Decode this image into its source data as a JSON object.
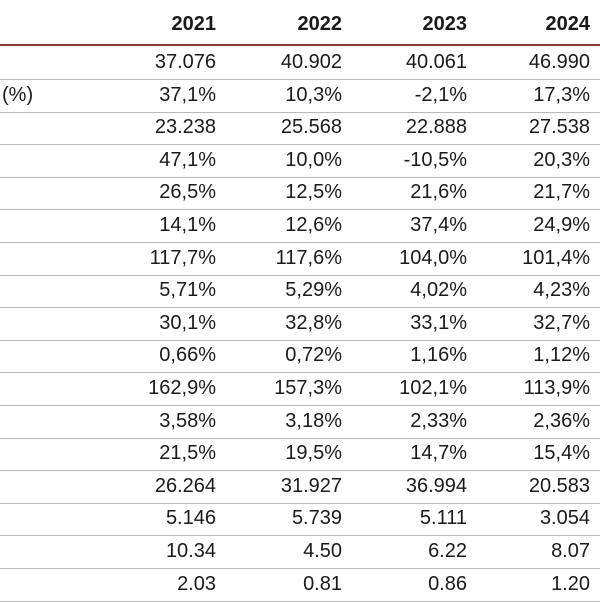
{
  "header": {
    "years": [
      "2021",
      "2022",
      "2023",
      "2024"
    ]
  },
  "rows": [
    {
      "label": "",
      "values": [
        "37.076",
        "40.902",
        "40.061",
        "46.990"
      ]
    },
    {
      "label": "(%)",
      "values": [
        "37,1%",
        "10,3%",
        "-2,1%",
        "17,3%"
      ]
    },
    {
      "label": "",
      "values": [
        "23.238",
        "25.568",
        "22.888",
        "27.538"
      ]
    },
    {
      "label": "",
      "values": [
        "47,1%",
        "10,0%",
        "-10,5%",
        "20,3%"
      ]
    },
    {
      "label": "",
      "values": [
        "26,5%",
        "12,5%",
        "21,6%",
        "21,7%"
      ]
    },
    {
      "label": "",
      "values": [
        "14,1%",
        "12,6%",
        "37,4%",
        "24,9%"
      ]
    },
    {
      "label": "",
      "values": [
        "117,7%",
        "117,6%",
        "104,0%",
        "101,4%"
      ]
    },
    {
      "label": "",
      "values": [
        "5,71%",
        "5,29%",
        "4,02%",
        "4,23%"
      ]
    },
    {
      "label": "",
      "values": [
        "30,1%",
        "32,8%",
        "33,1%",
        "32,7%"
      ]
    },
    {
      "label": "",
      "values": [
        "0,66%",
        "0,72%",
        "1,16%",
        "1,12%"
      ]
    },
    {
      "label": "",
      "values": [
        "162,9%",
        "157,3%",
        "102,1%",
        "113,9%"
      ]
    },
    {
      "label": "",
      "values": [
        "3,58%",
        "3,18%",
        "2,33%",
        "2,36%"
      ]
    },
    {
      "label": "",
      "values": [
        "21,5%",
        "19,5%",
        "14,7%",
        "15,4%"
      ]
    },
    {
      "label": "",
      "values": [
        "26.264",
        "31.927",
        "36.994",
        "20.583"
      ]
    },
    {
      "label": "",
      "values": [
        "5.146",
        "5.739",
        "5.111",
        "3.054"
      ]
    },
    {
      "label": "",
      "values": [
        "10.34",
        "4.50",
        "6.22",
        "8.07"
      ]
    },
    {
      "label": "",
      "values": [
        "2.03",
        "0.81",
        "0.86",
        "1.20"
      ]
    }
  ]
}
